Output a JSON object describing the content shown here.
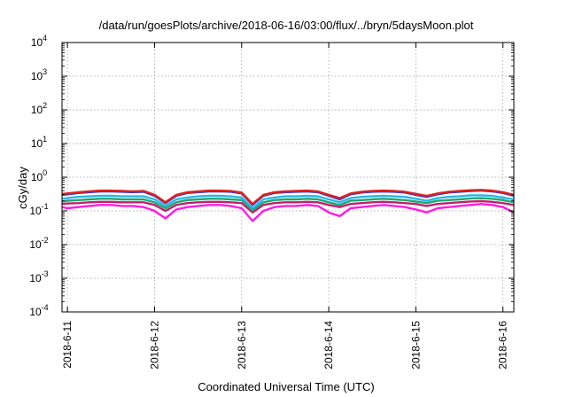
{
  "chart_data": {
    "type": "line",
    "title": "/data/run/goesPlots/archive/2018-06-16/03:00/flux/../bryn/5daysMoon.plot",
    "xlabel": "Coordinated Universal Time (UTC)",
    "ylabel": "cGy/day",
    "y_scale": "log",
    "ylim": [
      0.0001,
      10000
    ],
    "xlim": [
      "2018-06-10T22:30",
      "2018-06-16T03:00"
    ],
    "grid": true,
    "legend": "none",
    "y_ticks": [
      {
        "base": "10",
        "exp": "-4",
        "value": 0.0001
      },
      {
        "base": "10",
        "exp": "-3",
        "value": 0.001
      },
      {
        "base": "10",
        "exp": "-2",
        "value": 0.01
      },
      {
        "base": "10",
        "exp": "-1",
        "value": 0.1
      },
      {
        "base": "10",
        "exp": "0",
        "value": 1
      },
      {
        "base": "10",
        "exp": "1",
        "value": 10
      },
      {
        "base": "10",
        "exp": "2",
        "value": 100
      },
      {
        "base": "10",
        "exp": "3",
        "value": 1000
      },
      {
        "base": "10",
        "exp": "4",
        "value": 10000
      }
    ],
    "x_ticks": [
      {
        "label": "2018-6-11",
        "value": "2018-06-11T00:00"
      },
      {
        "label": "2018-6-12",
        "value": "2018-06-12T00:00"
      },
      {
        "label": "2018-6-13",
        "value": "2018-06-13T00:00"
      },
      {
        "label": "2018-6-14",
        "value": "2018-06-14T00:00"
      },
      {
        "label": "2018-6-15",
        "value": "2018-06-15T00:00"
      },
      {
        "label": "2018-6-16",
        "value": "2018-06-16T00:00"
      }
    ],
    "x": [
      "2018-06-10T22:30",
      "2018-06-11T00:00",
      "2018-06-11T03:00",
      "2018-06-11T06:00",
      "2018-06-11T09:00",
      "2018-06-11T12:00",
      "2018-06-11T15:00",
      "2018-06-11T18:00",
      "2018-06-11T21:00",
      "2018-06-12T00:00",
      "2018-06-12T03:00",
      "2018-06-12T06:00",
      "2018-06-12T09:00",
      "2018-06-12T12:00",
      "2018-06-12T15:00",
      "2018-06-12T18:00",
      "2018-06-12T21:00",
      "2018-06-13T00:00",
      "2018-06-13T03:00",
      "2018-06-13T06:00",
      "2018-06-13T09:00",
      "2018-06-13T12:00",
      "2018-06-13T15:00",
      "2018-06-13T18:00",
      "2018-06-13T21:00",
      "2018-06-14T00:00",
      "2018-06-14T03:00",
      "2018-06-14T06:00",
      "2018-06-14T09:00",
      "2018-06-14T12:00",
      "2018-06-14T15:00",
      "2018-06-14T18:00",
      "2018-06-14T21:00",
      "2018-06-15T00:00",
      "2018-06-15T03:00",
      "2018-06-15T06:00",
      "2018-06-15T09:00",
      "2018-06-15T12:00",
      "2018-06-15T15:00",
      "2018-06-15T18:00",
      "2018-06-15T21:00",
      "2018-06-16T00:00",
      "2018-06-16T03:00"
    ],
    "series": [
      {
        "color": "#e0201c",
        "values": [
          0.32,
          0.33,
          0.36,
          0.38,
          0.4,
          0.4,
          0.39,
          0.38,
          0.39,
          0.3,
          0.18,
          0.3,
          0.36,
          0.38,
          0.4,
          0.4,
          0.39,
          0.35,
          0.16,
          0.3,
          0.36,
          0.38,
          0.39,
          0.4,
          0.38,
          0.3,
          0.24,
          0.33,
          0.37,
          0.39,
          0.4,
          0.39,
          0.37,
          0.32,
          0.28,
          0.33,
          0.37,
          0.39,
          0.41,
          0.42,
          0.4,
          0.36,
          0.3
        ]
      },
      {
        "color": "#2b3fd6",
        "values": [
          0.3,
          0.31,
          0.34,
          0.36,
          0.38,
          0.38,
          0.37,
          0.36,
          0.37,
          0.28,
          0.17,
          0.28,
          0.34,
          0.36,
          0.38,
          0.38,
          0.37,
          0.33,
          0.15,
          0.28,
          0.34,
          0.36,
          0.37,
          0.38,
          0.36,
          0.28,
          0.22,
          0.31,
          0.35,
          0.37,
          0.38,
          0.37,
          0.35,
          0.3,
          0.26,
          0.31,
          0.35,
          0.37,
          0.39,
          0.4,
          0.38,
          0.34,
          0.28
        ]
      },
      {
        "color": "#2ab5e8",
        "values": [
          0.23,
          0.24,
          0.26,
          0.27,
          0.28,
          0.28,
          0.27,
          0.27,
          0.27,
          0.22,
          0.14,
          0.22,
          0.25,
          0.27,
          0.28,
          0.28,
          0.27,
          0.25,
          0.12,
          0.22,
          0.25,
          0.27,
          0.27,
          0.28,
          0.27,
          0.22,
          0.18,
          0.24,
          0.26,
          0.27,
          0.28,
          0.27,
          0.26,
          0.23,
          0.2,
          0.24,
          0.26,
          0.27,
          0.29,
          0.29,
          0.28,
          0.25,
          0.22
        ]
      },
      {
        "color": "#1fa870",
        "values": [
          0.19,
          0.2,
          0.21,
          0.22,
          0.23,
          0.23,
          0.22,
          0.22,
          0.22,
          0.18,
          0.12,
          0.18,
          0.21,
          0.22,
          0.23,
          0.23,
          0.22,
          0.21,
          0.105,
          0.18,
          0.21,
          0.22,
          0.22,
          0.23,
          0.22,
          0.18,
          0.15,
          0.2,
          0.21,
          0.22,
          0.23,
          0.22,
          0.21,
          0.19,
          0.17,
          0.2,
          0.21,
          0.22,
          0.235,
          0.24,
          0.23,
          0.21,
          0.18
        ]
      },
      {
        "color": "#c21f6e",
        "values": [
          0.16,
          0.165,
          0.17,
          0.18,
          0.185,
          0.185,
          0.18,
          0.18,
          0.18,
          0.15,
          0.1,
          0.15,
          0.17,
          0.18,
          0.185,
          0.185,
          0.18,
          0.17,
          0.09,
          0.15,
          0.17,
          0.18,
          0.18,
          0.185,
          0.18,
          0.15,
          0.13,
          0.16,
          0.17,
          0.18,
          0.185,
          0.18,
          0.17,
          0.16,
          0.14,
          0.16,
          0.17,
          0.18,
          0.19,
          0.195,
          0.185,
          0.17,
          0.15
        ]
      },
      {
        "color": "#ff1ae6",
        "values": [
          0.13,
          0.12,
          0.13,
          0.14,
          0.15,
          0.15,
          0.14,
          0.14,
          0.13,
          0.1,
          0.06,
          0.11,
          0.13,
          0.14,
          0.15,
          0.15,
          0.14,
          0.12,
          0.05,
          0.1,
          0.13,
          0.14,
          0.14,
          0.15,
          0.14,
          0.09,
          0.07,
          0.12,
          0.13,
          0.14,
          0.15,
          0.14,
          0.13,
          0.11,
          0.09,
          0.12,
          0.13,
          0.14,
          0.15,
          0.16,
          0.15,
          0.13,
          0.09
        ]
      }
    ]
  }
}
